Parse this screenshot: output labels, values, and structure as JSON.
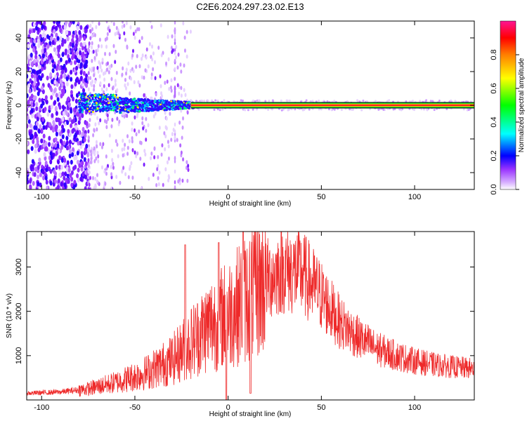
{
  "title": "C2E6.2024.297.23.02.E13",
  "chart_data": [
    {
      "type": "heatmap",
      "xlabel": "Height of straight line (km)",
      "ylabel": "Frequency (Hz)",
      "xlim": [
        -108,
        132
      ],
      "ylim": [
        -50,
        50
      ],
      "xticks": [
        -100,
        -50,
        0,
        50,
        100
      ],
      "yticks": [
        -40,
        -20,
        0,
        20,
        40
      ],
      "grid": false,
      "colorbar": {
        "label": "Normalized spectral amplitude",
        "range": [
          0,
          1
        ],
        "ticks": [
          0.0,
          0.2,
          0.4,
          0.6,
          0.8
        ],
        "colors": [
          "#ffffff",
          "#9933ff",
          "#0000ff",
          "#00ffff",
          "#00ff00",
          "#ffff00",
          "#ff7f00",
          "#ff0000",
          "#ff1493"
        ]
      },
      "features": {
        "carrier_frequency_hz": 0,
        "carrier_start_km": -20,
        "scattered_region_km": [
          -108,
          -75
        ],
        "sporadic_region_km": [
          -75,
          -20
        ]
      }
    },
    {
      "type": "line",
      "xlabel": "Height of straight line (km)",
      "ylabel": "SNR (10 * v/v)",
      "xlim": [
        -108,
        132
      ],
      "ylim": [
        0,
        3800
      ],
      "xticks": [
        -100,
        -50,
        0,
        50,
        100
      ],
      "yticks": [
        1000,
        2000,
        3000
      ],
      "grid": false,
      "line_color": "#ee2a2a",
      "envelope": {
        "x": [
          -108,
          -90,
          -75,
          -60,
          -45,
          -30,
          -20,
          -10,
          0,
          10,
          20,
          30,
          40,
          50,
          60,
          70,
          80,
          90,
          100,
          110,
          120,
          132
        ],
        "y": [
          150,
          180,
          250,
          400,
          600,
          900,
          1300,
          1700,
          1950,
          2300,
          2700,
          2950,
          2850,
          2350,
          1750,
          1400,
          1150,
          1000,
          880,
          800,
          750,
          700
        ]
      },
      "spikes": [
        {
          "x": -23,
          "y": 3500
        },
        {
          "x": -5,
          "y": 3550
        },
        {
          "x": 8,
          "y": 3800
        },
        {
          "x": -1,
          "y": 0
        },
        {
          "x": 12,
          "y": 150
        }
      ]
    }
  ]
}
